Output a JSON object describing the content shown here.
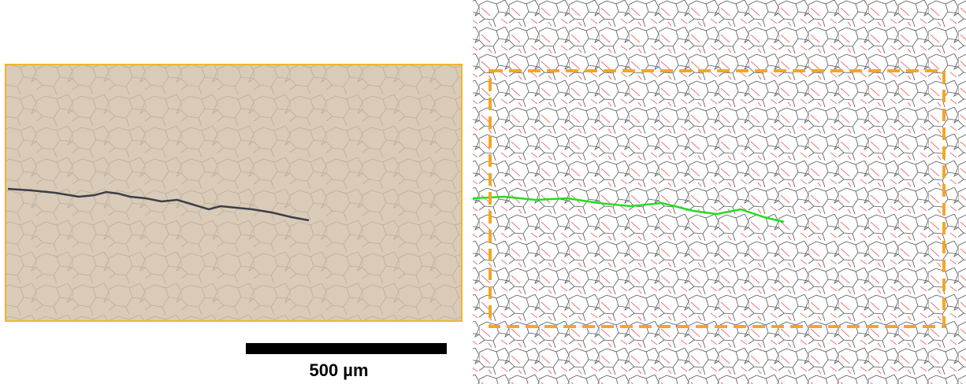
{
  "scale_bar": {
    "label": "500 µm"
  }
}
